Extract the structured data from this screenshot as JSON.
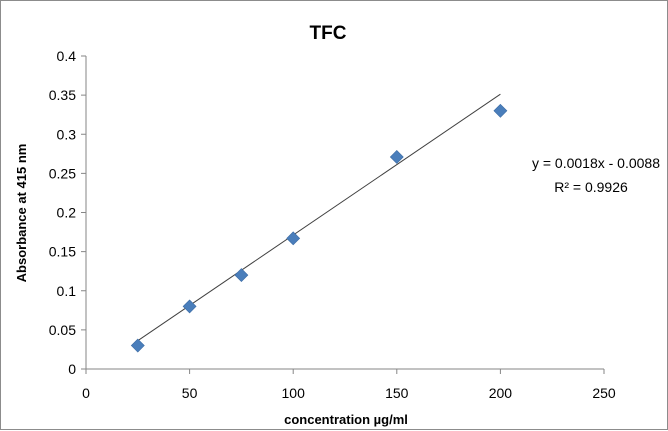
{
  "chart_data": {
    "type": "scatter",
    "title": "TFC",
    "xlabel": "concentration µg/ml",
    "ylabel": "Absorbance  at 415 nm",
    "xlim": [
      0,
      250
    ],
    "ylim": [
      0,
      0.4
    ],
    "x_ticks": [
      "0",
      "50",
      "100",
      "150",
      "200",
      "250"
    ],
    "y_ticks": [
      "0",
      "0.05",
      "0.1",
      "0.15",
      "0.2",
      "0.25",
      "0.3",
      "0.35",
      "0.4"
    ],
    "grid": false,
    "legend": "none",
    "series": [
      {
        "x": [
          25,
          50,
          75,
          100,
          150,
          200
        ],
        "y": [
          0.03,
          0.08,
          0.12,
          0.167,
          0.271,
          0.33
        ],
        "marker": "diamond",
        "color": "#4a7ebb"
      }
    ],
    "trendline": {
      "type": "linear",
      "slope": 0.0018,
      "intercept": -0.0088,
      "x_range": [
        25,
        200
      ],
      "color": "#404040",
      "equation_label": "y = 0.0018x - 0.0088",
      "r2_label": "R² = 0.9926"
    }
  }
}
